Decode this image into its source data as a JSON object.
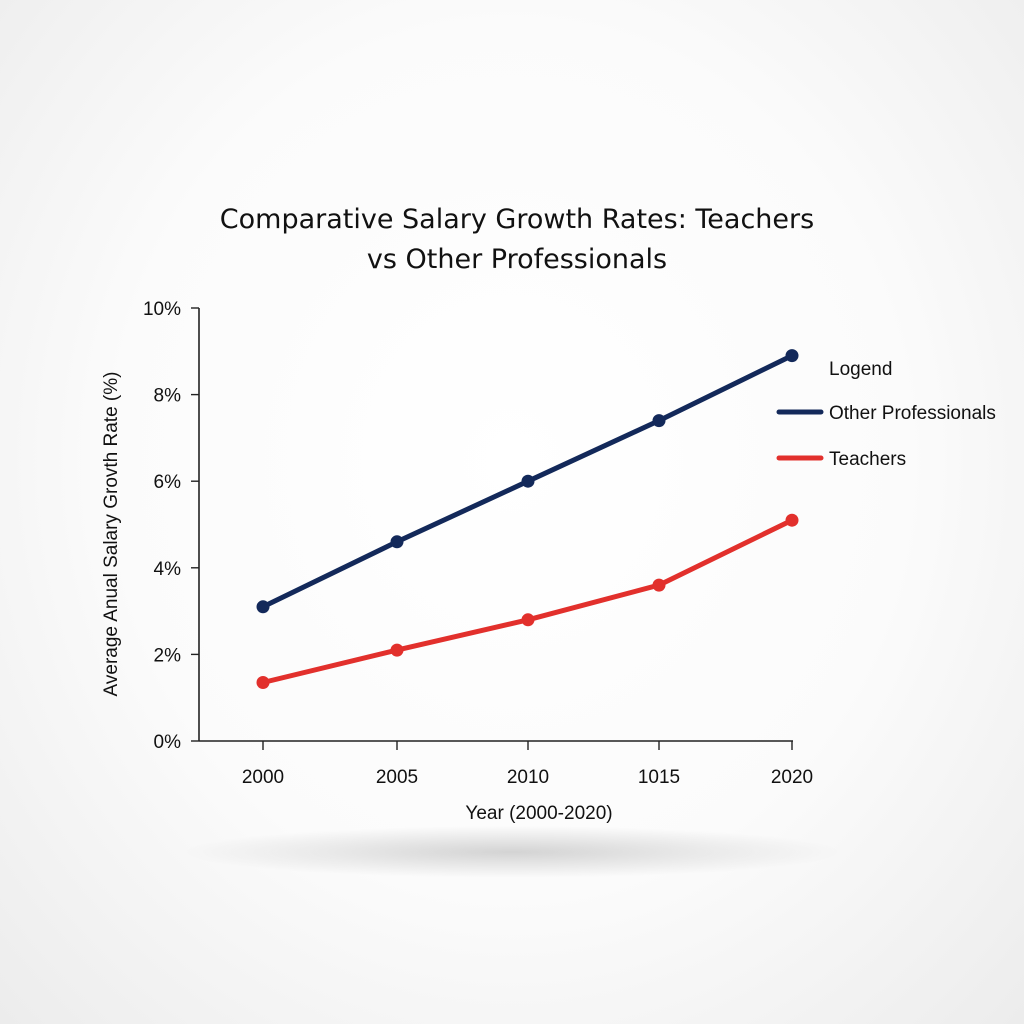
{
  "chart_data": {
    "type": "line",
    "title_lines": [
      "Comparative Salary Growth Rates: Teachers",
      "vs Other Professionals"
    ],
    "xlabel": "Year (2000-2020)",
    "ylabel": "Average Anual Salary Grovth Rate (%)",
    "categories": [
      "2000",
      "2005",
      "2010",
      "1015",
      "2020"
    ],
    "ylim": [
      0,
      10
    ],
    "yticks": [
      "0%",
      "2%",
      "4%",
      "6%",
      "8%",
      "10%"
    ],
    "ytick_values": [
      0,
      2,
      4,
      6,
      8,
      10
    ],
    "legend": {
      "title": "Logend",
      "placement": "right"
    },
    "series": [
      {
        "name": "Other Professionals",
        "color": "#13295a",
        "values": [
          3.1,
          4.6,
          6.0,
          7.4,
          8.9
        ]
      },
      {
        "name": "Teachers",
        "color": "#e2302c",
        "values": [
          1.35,
          2.1,
          2.8,
          3.6,
          5.1
        ]
      }
    ],
    "grid": false
  }
}
